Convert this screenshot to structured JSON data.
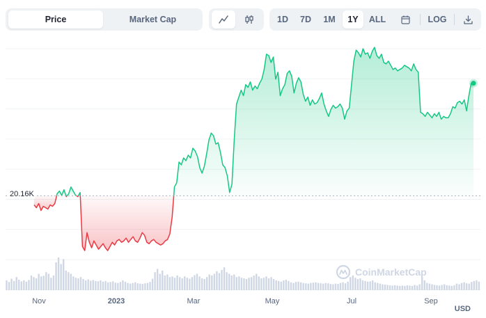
{
  "toolbar": {
    "type_tabs": [
      {
        "label": "Price",
        "active": true
      },
      {
        "label": "Market Cap",
        "active": false
      }
    ],
    "chart_style": [
      {
        "icon": "line-chart-icon",
        "active": true
      },
      {
        "icon": "candlestick-icon",
        "active": false
      }
    ],
    "ranges": [
      {
        "label": "1D",
        "active": false
      },
      {
        "label": "7D",
        "active": false
      },
      {
        "label": "1M",
        "active": false
      },
      {
        "label": "1Y",
        "active": true
      },
      {
        "label": "ALL",
        "active": false
      }
    ],
    "calendar_icon": "calendar-icon",
    "log_label": "LOG",
    "download_icon": "download-icon"
  },
  "currency_label": "USD",
  "watermark": "CoinMarketCap",
  "colors": {
    "up": "#16c784",
    "down": "#ea3943",
    "volume": "#cfd6e4",
    "grid": "#eff2f5"
  },
  "chart_data": {
    "type": "line",
    "title": "",
    "xlabel": "",
    "ylabel": "",
    "x_tick_labels": [
      "Nov",
      "2023",
      "Mar",
      "May",
      "Jul",
      "Sep"
    ],
    "reference_value_label": "20.16K",
    "reference_value": 20160,
    "ylim": [
      15500,
      31000
    ],
    "grid": true,
    "y_tick_labels_visible": false,
    "series_price": {
      "x_range": [
        "2022-10-11",
        "2023-10-10"
      ],
      "values": [
        19500,
        19300,
        19600,
        19100,
        19400,
        19300,
        19200,
        19500,
        19400,
        19600,
        20300,
        20500,
        20200,
        20600,
        20100,
        20300,
        20800,
        20500,
        20200,
        20100,
        20400,
        16500,
        16200,
        17500,
        16800,
        16400,
        16900,
        16600,
        16300,
        16500,
        16700,
        16400,
        16200,
        16500,
        16800,
        16600,
        16900,
        17000,
        16800,
        16900,
        17100,
        16800,
        17000,
        17200,
        16900,
        16800,
        17100,
        17500,
        17300,
        16800,
        16700,
        16900,
        17000,
        16800,
        16700,
        16600,
        16700,
        16900,
        17000,
        17400,
        18600,
        20800,
        21100,
        22600,
        22400,
        22900,
        22700,
        23100,
        22900,
        23600,
        23400,
        23000,
        22200,
        21800,
        22300,
        23200,
        24200,
        24700,
        24500,
        23900,
        24000,
        23300,
        22400,
        22200,
        21600,
        20400,
        21000,
        24200,
        26800,
        27300,
        27800,
        27400,
        28200,
        28000,
        28400,
        27800,
        28100,
        27900,
        28300,
        28600,
        29300,
        30400,
        30300,
        29800,
        30200,
        28600,
        29100,
        27400,
        27900,
        28200,
        29000,
        29200,
        28800,
        27600,
        28300,
        28700,
        28400,
        27500,
        27000,
        27300,
        26700,
        27100,
        26800,
        26900,
        27200,
        27600,
        26800,
        26300,
        25900,
        26400,
        26700,
        26500,
        26600,
        26800,
        26500,
        25700,
        26300,
        26500,
        28200,
        29900,
        30700,
        30500,
        30200,
        30800,
        30400,
        30500,
        30100,
        30600,
        30900,
        30300,
        30100,
        30400,
        29800,
        29700,
        29900,
        29600,
        29300,
        29400,
        29200,
        29300,
        29400,
        29600,
        29500,
        29400,
        29200,
        29700,
        29300,
        29100,
        26200,
        26100,
        25900,
        26200,
        26000,
        25800,
        26100,
        25900,
        26200,
        25700,
        25900,
        25800,
        25800,
        26100,
        26600,
        26500,
        26900,
        27000,
        26800,
        27100,
        26300,
        27400,
        28300,
        28300
      ]
    },
    "series_volume": {
      "name": "Volume",
      "values": [
        0.3,
        0.25,
        0.35,
        0.28,
        0.4,
        0.32,
        0.27,
        0.3,
        0.26,
        0.31,
        0.45,
        0.4,
        0.36,
        0.5,
        0.42,
        0.44,
        0.55,
        0.5,
        0.38,
        0.45,
        0.85,
        1.0,
        0.8,
        0.95,
        0.6,
        0.55,
        0.5,
        0.42,
        0.38,
        0.36,
        0.4,
        0.34,
        0.3,
        0.33,
        0.29,
        0.31,
        0.28,
        0.27,
        0.3,
        0.26,
        0.28,
        0.24,
        0.25,
        0.27,
        0.23,
        0.22,
        0.25,
        0.3,
        0.26,
        0.22,
        0.2,
        0.22,
        0.24,
        0.21,
        0.2,
        0.19,
        0.21,
        0.22,
        0.25,
        0.35,
        0.55,
        0.65,
        0.5,
        0.6,
        0.45,
        0.48,
        0.4,
        0.42,
        0.38,
        0.45,
        0.4,
        0.36,
        0.42,
        0.38,
        0.35,
        0.4,
        0.46,
        0.5,
        0.42,
        0.36,
        0.34,
        0.4,
        0.48,
        0.45,
        0.5,
        0.58,
        0.52,
        0.62,
        0.7,
        0.55,
        0.5,
        0.45,
        0.48,
        0.4,
        0.42,
        0.38,
        0.36,
        0.34,
        0.38,
        0.4,
        0.45,
        0.5,
        0.42,
        0.36,
        0.38,
        0.42,
        0.36,
        0.4,
        0.34,
        0.3,
        0.28,
        0.26,
        0.3,
        0.32,
        0.28,
        0.24,
        0.22,
        0.25,
        0.26,
        0.24,
        0.22,
        0.21,
        0.2,
        0.22,
        0.23,
        0.24,
        0.22,
        0.21,
        0.2,
        0.22,
        0.21,
        0.19,
        0.18,
        0.2,
        0.19,
        0.22,
        0.24,
        0.21,
        0.26,
        0.4,
        0.45,
        0.38,
        0.34,
        0.36,
        0.3,
        0.28,
        0.26,
        0.27,
        0.3,
        0.24,
        0.22,
        0.2,
        0.18,
        0.17,
        0.16,
        0.15,
        0.14,
        0.15,
        0.14,
        0.13,
        0.14,
        0.13,
        0.15,
        0.14,
        0.13,
        0.16,
        0.14,
        0.18,
        0.4,
        0.3,
        0.22,
        0.2,
        0.18,
        0.16,
        0.15,
        0.14,
        0.16,
        0.18,
        0.15,
        0.14,
        0.13,
        0.15,
        0.2,
        0.18,
        0.22,
        0.24,
        0.21,
        0.2,
        0.25,
        0.28,
        0.3,
        0.26
      ]
    }
  }
}
